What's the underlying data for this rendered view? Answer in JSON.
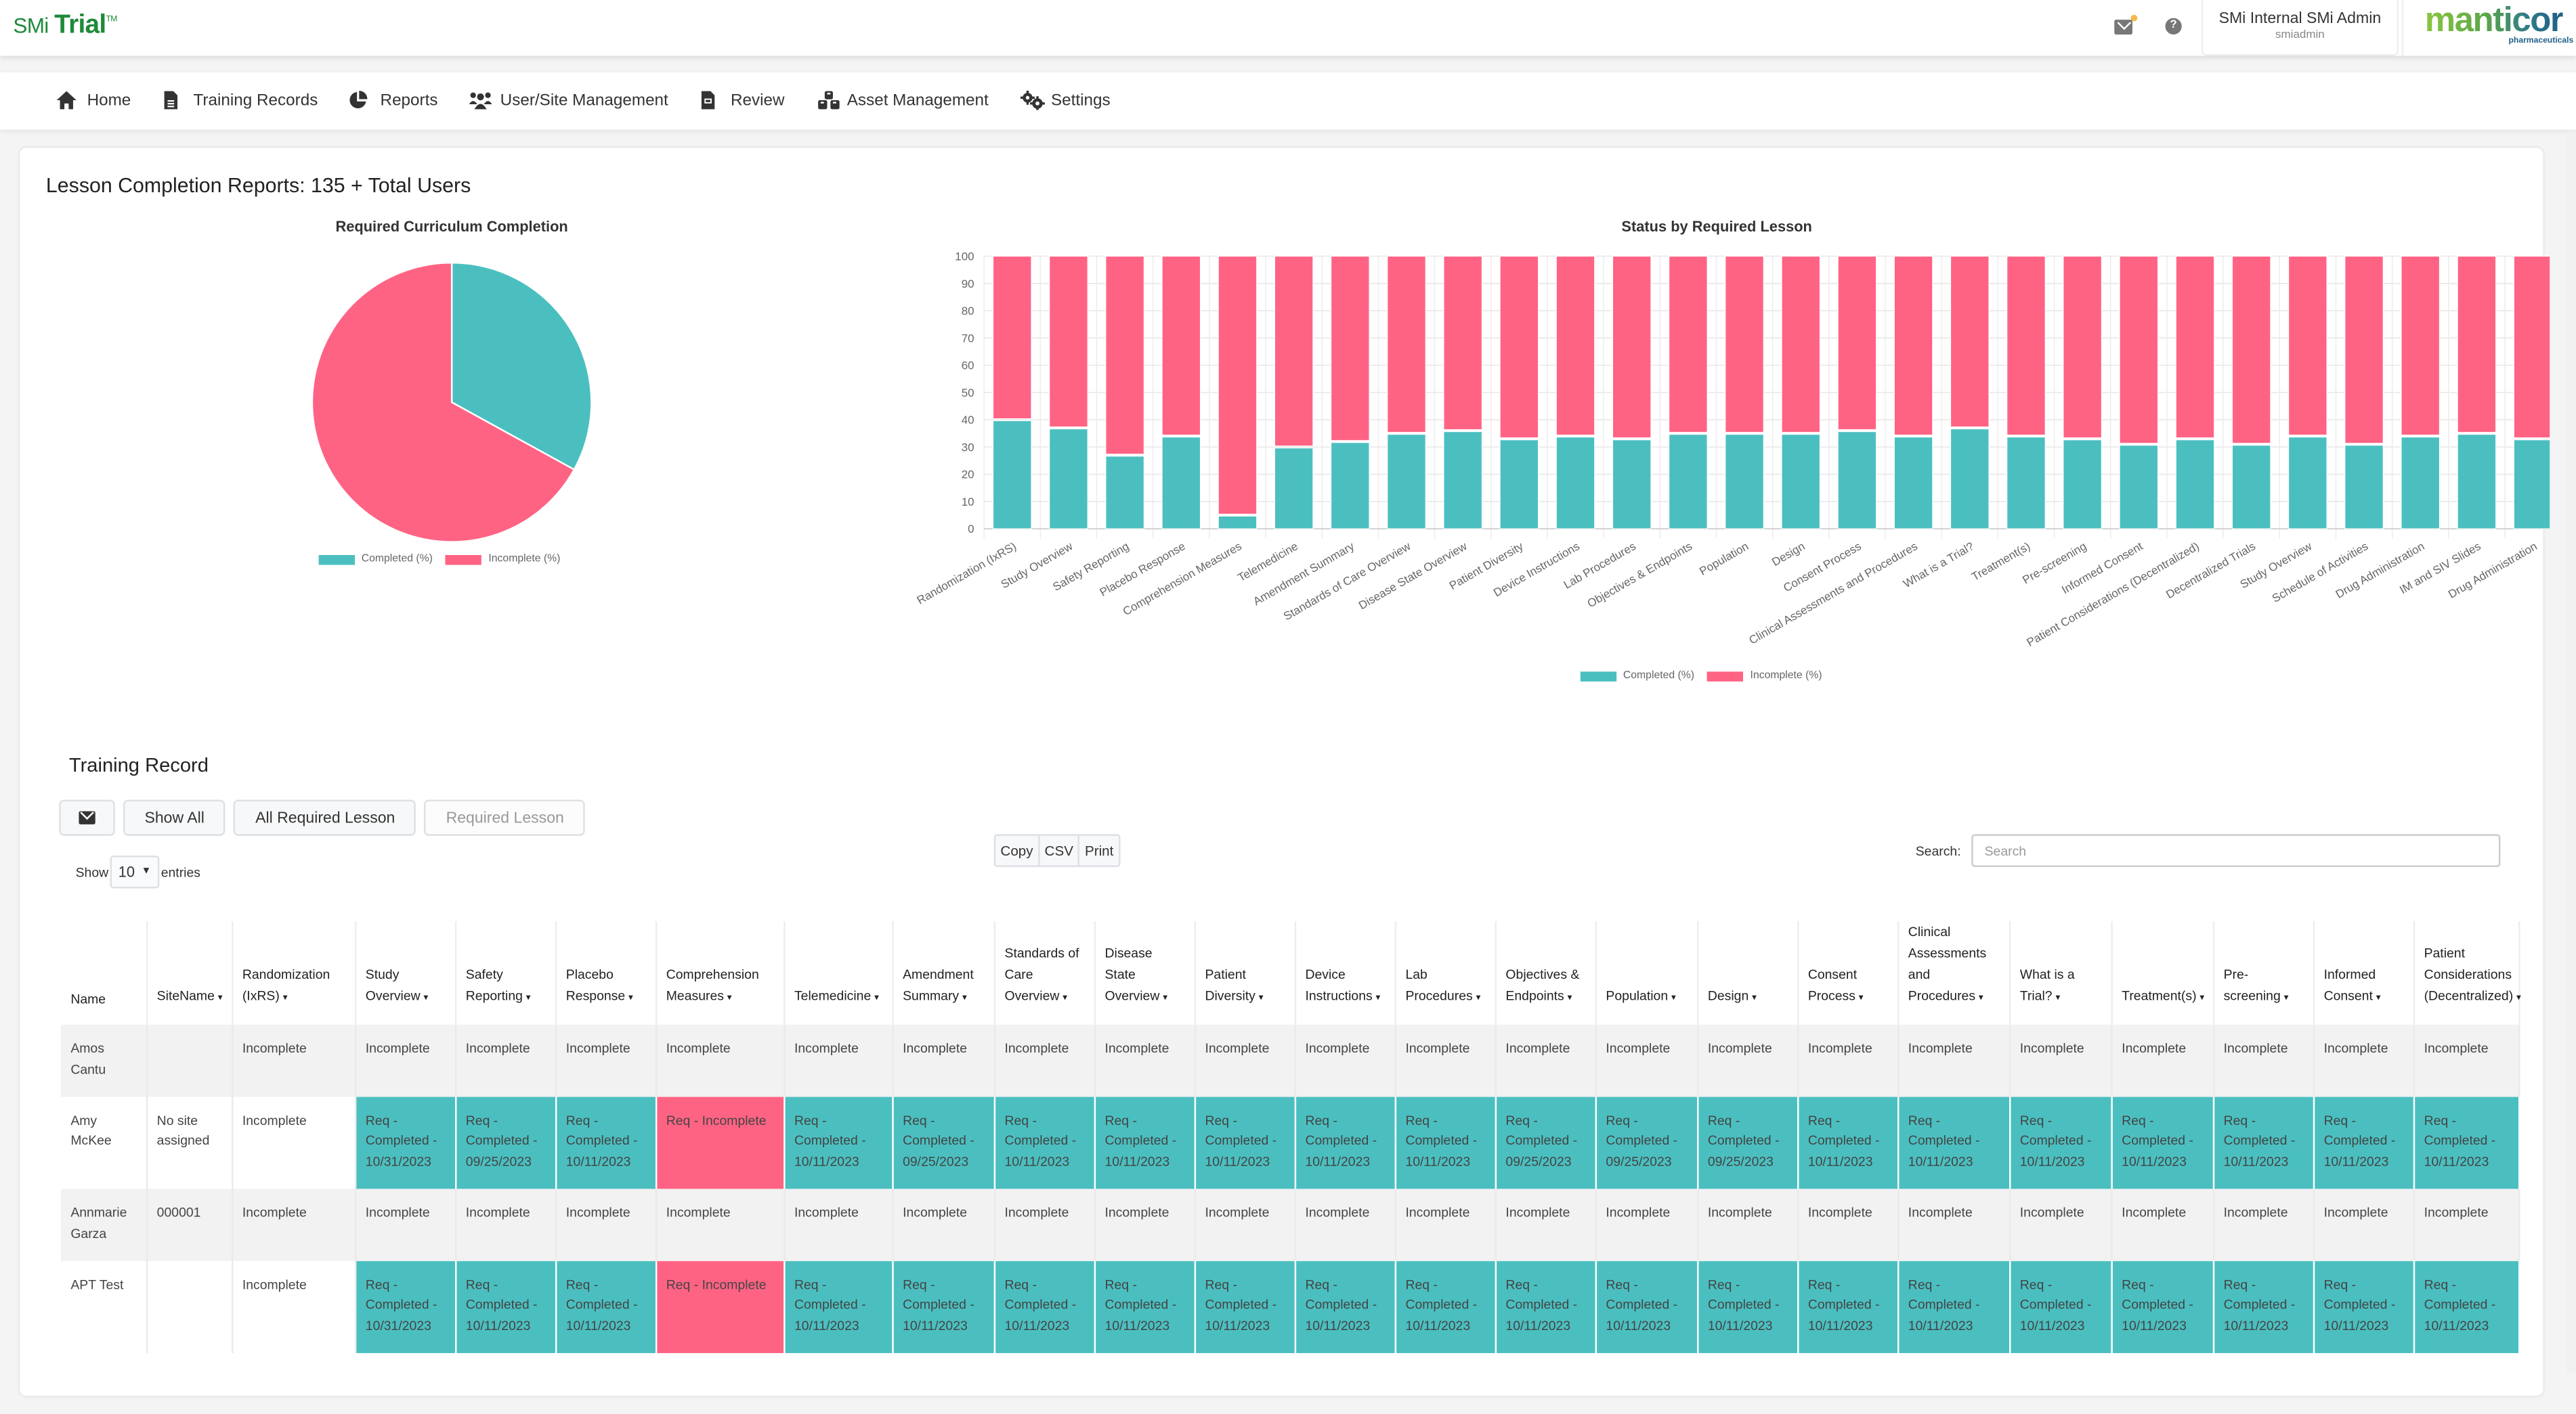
{
  "header": {
    "logo_prefix": "SMi",
    "logo_main": "Trial",
    "logo_tm": "TM",
    "user_name": "SMi Internal SMi Admin",
    "user_login": "smiadmin",
    "brand_name": "manticor",
    "brand_sub": "pharmaceuticals",
    "icons": [
      "mail-icon",
      "help-icon"
    ],
    "help_glyph": "?"
  },
  "nav": [
    {
      "label": "Home",
      "icon": "home-icon"
    },
    {
      "label": "Training Records",
      "icon": "file-icon"
    },
    {
      "label": "Reports",
      "icon": "pie-chart-icon"
    },
    {
      "label": "User/Site Management",
      "icon": "users-icon"
    },
    {
      "label": "Review",
      "icon": "document-icon"
    },
    {
      "label": "Asset Management",
      "icon": "cubes-icon"
    },
    {
      "label": "Settings",
      "icon": "gears-icon"
    }
  ],
  "page_title": "Lesson Completion Reports: 135 + Total Users",
  "colors": {
    "completed": "#4bbfc0",
    "incomplete": "#ff6384"
  },
  "chart_data": [
    {
      "type": "pie",
      "title": "Required Curriculum Completion",
      "labels": [
        "Completed (%)",
        "Incomplete (%)"
      ],
      "values": [
        33,
        67
      ],
      "legend": "bottom"
    },
    {
      "type": "bar",
      "stacked": true,
      "title": "Status by Required Lesson",
      "categories": [
        "Randomization (IxRS)",
        "Study Overview",
        "Safety Reporting",
        "Placebo Response",
        "Comprehension Measures",
        "Telemedicine",
        "Amendment Summary",
        "Standards of Care Overview",
        "Disease State Overview",
        "Patient Diversity",
        "Device Instructions",
        "Lab Procedures",
        "Objectives & Endpoints",
        "Population",
        "Design",
        "Consent Process",
        "Clinical Assessments and Procedures",
        "What is a Trial?",
        "Treatment(s)",
        "Pre-screening",
        "Informed Consent",
        "Patient Considerations (Decentralized)",
        "Decentralized Trials",
        "Study Overview",
        "Schedule of Activities",
        "Drug Administration",
        "IM and SIV Slides",
        "Drug Administration"
      ],
      "series": [
        {
          "name": "Completed (%)",
          "values": [
            40,
            37,
            27,
            34,
            5,
            30,
            32,
            35,
            36,
            33,
            34,
            33,
            35,
            35,
            35,
            36,
            34,
            37,
            34,
            33,
            31,
            33,
            31,
            34,
            31,
            34,
            35,
            33
          ]
        },
        {
          "name": "Incomplete (%)",
          "values": [
            60,
            63,
            73,
            66,
            95,
            70,
            68,
            65,
            64,
            67,
            66,
            67,
            65,
            65,
            65,
            64,
            66,
            63,
            66,
            67,
            69,
            67,
            69,
            66,
            69,
            66,
            65,
            67
          ]
        }
      ],
      "yticks": [
        "0",
        "10",
        "20",
        "30",
        "40",
        "50",
        "60",
        "70",
        "80",
        "90",
        "100"
      ],
      "ylim": [
        0,
        100
      ],
      "xlabel": "",
      "ylabel": "",
      "grid": true,
      "legend": "bottom"
    }
  ],
  "training": {
    "title": "Training Record",
    "buttons": {
      "email": "envelope-icon",
      "show_all": "Show All",
      "all_required": "All Required Lesson",
      "required": "Required Lesson"
    },
    "show_label": "Show",
    "entries_value": "10",
    "entries_label": "entries",
    "export": [
      "Copy",
      "CSV",
      "Print"
    ],
    "search_label": "Search:",
    "search_placeholder": "Search",
    "search_value": "",
    "columns": [
      {
        "label": "Name",
        "sortable": false
      },
      {
        "label": "SiteName",
        "sortable": true
      },
      {
        "label": "Randomization (IxRS)",
        "sortable": true
      },
      {
        "label": "Study Overview",
        "sortable": true
      },
      {
        "label": "Safety Reporting",
        "sortable": true
      },
      {
        "label": "Placebo Response",
        "sortable": true
      },
      {
        "label": "Comprehension Measures",
        "sortable": true
      },
      {
        "label": "Telemedicine",
        "sortable": true
      },
      {
        "label": "Amendment Summary",
        "sortable": true
      },
      {
        "label": "Standards of Care Overview",
        "sortable": true
      },
      {
        "label": "Disease State Overview",
        "sortable": true
      },
      {
        "label": "Patient Diversity",
        "sortable": true
      },
      {
        "label": "Device Instructions",
        "sortable": true
      },
      {
        "label": "Lab Procedures",
        "sortable": true
      },
      {
        "label": "Objectives & Endpoints",
        "sortable": true
      },
      {
        "label": "Population",
        "sortable": true
      },
      {
        "label": "Design",
        "sortable": true
      },
      {
        "label": "Consent Process",
        "sortable": true
      },
      {
        "label": "Clinical Assessments and Procedures",
        "sortable": true
      },
      {
        "label": "What is a Trial?",
        "sortable": true
      },
      {
        "label": "Treatment(s)",
        "sortable": true
      },
      {
        "label": "Pre-screening",
        "sortable": true
      },
      {
        "label": "Informed Consent",
        "sortable": true
      },
      {
        "label": "Patient Considerations (Decentralized)",
        "sortable": true
      }
    ],
    "sort_glyph": "▾",
    "rows": [
      {
        "name": "Amos Cantu",
        "site": "",
        "cells": [
          "Incomplete",
          "Incomplete",
          "Incomplete",
          "Incomplete",
          "Incomplete",
          "Incomplete",
          "Incomplete",
          "Incomplete",
          "Incomplete",
          "Incomplete",
          "Incomplete",
          "Incomplete",
          "Incomplete",
          "Incomplete",
          "Incomplete",
          "Incomplete",
          "Incomplete",
          "Incomplete",
          "Incomplete",
          "Incomplete",
          "Incomplete",
          "Incomplete"
        ],
        "status": [
          "",
          "",
          "",
          "",
          "",
          "",
          "",
          "",
          "",
          "",
          "",
          "",
          "",
          "",
          "",
          "",
          "",
          "",
          "",
          "",
          "",
          ""
        ]
      },
      {
        "name": "Amy McKee",
        "site": "No site assigned",
        "cells": [
          "Incomplete",
          "Req - Completed - 10/31/2023",
          "Req - Completed - 09/25/2023",
          "Req - Completed - 10/11/2023",
          "Req - Incomplete",
          "Req - Completed - 10/11/2023",
          "Req - Completed - 09/25/2023",
          "Req - Completed - 10/11/2023",
          "Req - Completed - 10/11/2023",
          "Req - Completed - 10/11/2023",
          "Req - Completed - 10/11/2023",
          "Req - Completed - 10/11/2023",
          "Req - Completed - 09/25/2023",
          "Req - Completed - 09/25/2023",
          "Req - Completed - 09/25/2023",
          "Req - Completed - 10/11/2023",
          "Req - Completed - 10/11/2023",
          "Req - Completed - 10/11/2023",
          "Req - Completed - 10/11/2023",
          "Req - Completed - 10/11/2023",
          "Req - Completed - 10/11/2023",
          "Req - Completed - 10/11/2023"
        ],
        "status": [
          "",
          "ok",
          "ok",
          "ok",
          "bad",
          "ok",
          "ok",
          "ok",
          "ok",
          "ok",
          "ok",
          "ok",
          "ok",
          "ok",
          "ok",
          "ok",
          "ok",
          "ok",
          "ok",
          "ok",
          "ok",
          "ok"
        ]
      },
      {
        "name": "Annmarie Garza",
        "site": "000001",
        "cells": [
          "Incomplete",
          "Incomplete",
          "Incomplete",
          "Incomplete",
          "Incomplete",
          "Incomplete",
          "Incomplete",
          "Incomplete",
          "Incomplete",
          "Incomplete",
          "Incomplete",
          "Incomplete",
          "Incomplete",
          "Incomplete",
          "Incomplete",
          "Incomplete",
          "Incomplete",
          "Incomplete",
          "Incomplete",
          "Incomplete",
          "Incomplete",
          "Incomplete"
        ],
        "status": [
          "",
          "",
          "",
          "",
          "",
          "",
          "",
          "",
          "",
          "",
          "",
          "",
          "",
          "",
          "",
          "",
          "",
          "",
          "",
          "",
          "",
          ""
        ]
      },
      {
        "name": "APT Test",
        "site": "",
        "cells": [
          "Incomplete",
          "Req - Completed - 10/31/2023",
          "Req - Completed - 10/11/2023",
          "Req - Completed - 10/11/2023",
          "Req - Incomplete",
          "Req - Completed - 10/11/2023",
          "Req - Completed - 10/11/2023",
          "Req - Completed - 10/11/2023",
          "Req - Completed - 10/11/2023",
          "Req - Completed - 10/11/2023",
          "Req - Completed - 10/11/2023",
          "Req - Completed - 10/11/2023",
          "Req - Completed - 10/11/2023",
          "Req - Completed - 10/11/2023",
          "Req - Completed - 10/11/2023",
          "Req - Completed - 10/11/2023",
          "Req - Completed - 10/11/2023",
          "Req - Completed - 10/11/2023",
          "Req - Completed - 10/11/2023",
          "Req - Completed - 10/11/2023",
          "Req - Completed - 10/11/2023",
          "Req - Completed - 10/11/2023"
        ],
        "status": [
          "",
          "ok",
          "ok",
          "ok",
          "bad",
          "ok",
          "ok",
          "ok",
          "ok",
          "ok",
          "ok",
          "ok",
          "ok",
          "ok",
          "ok",
          "ok",
          "ok",
          "ok",
          "ok",
          "ok",
          "ok",
          "ok"
        ]
      }
    ]
  }
}
